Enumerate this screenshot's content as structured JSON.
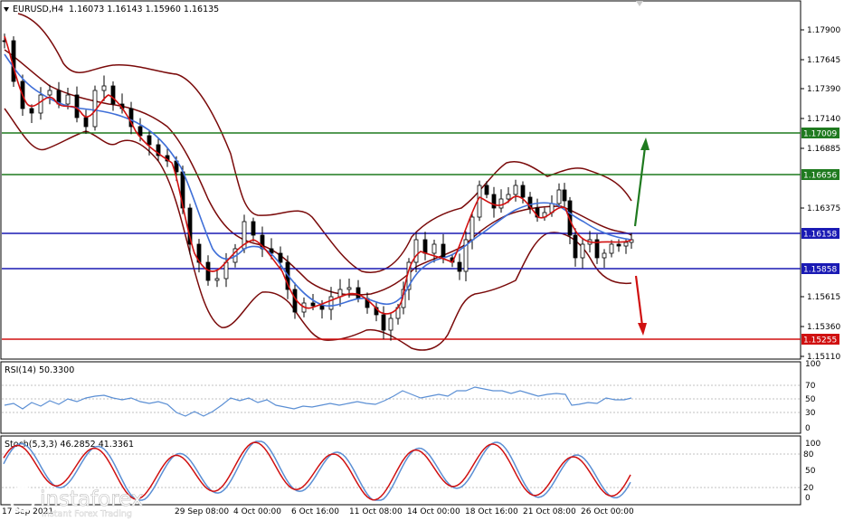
{
  "header": {
    "symbol": "EURUSD,H4",
    "ohlc": "1.16073 1.16143 1.15960 1.16135"
  },
  "price_axis": [
    "1.17900",
    "1.17645",
    "1.17390",
    "1.17140",
    "1.16885",
    "1.16375",
    "1.15615",
    "1.15360",
    "1.15110"
  ],
  "price_levels": [
    {
      "value": 1.17009,
      "label": "1.17009",
      "color": "#1f7a1f"
    },
    {
      "value": 1.16656,
      "label": "1.16656",
      "color": "#1f7a1f"
    },
    {
      "value": 1.16158,
      "label": "1.16158",
      "color": "#1a1ab4"
    },
    {
      "value": 1.15858,
      "label": "1.15858",
      "color": "#1a1ab4"
    },
    {
      "value": 1.15255,
      "label": "1.15255",
      "color": "#d01010"
    }
  ],
  "rsi": {
    "label": "RSI(14) 50.3300",
    "scale": [
      "70",
      "50",
      "30",
      "0"
    ],
    "tick_max": "100"
  },
  "stoch": {
    "label": "Stoch(5,3,3) 46.2852 41.3361",
    "scale": [
      "100",
      "50",
      "0"
    ],
    "levels": [
      "80",
      "20"
    ]
  },
  "time_axis": [
    "17 Sep 2021",
    "29 Sep 08:00",
    "4 Oct 00:00",
    "6 Oct 16:00",
    "11 Oct 08:00",
    "14 Oct 00:00",
    "18 Oct 16:00",
    "21 Oct 08:00",
    "26 Oct 00:00"
  ],
  "watermark": {
    "brand": "instaforex",
    "tagline": "Instant Forex Trading"
  },
  "colors": {
    "bull_arrow": "#1f7a1f",
    "bear_arrow": "#d01010",
    "bands": "#7a0a0a",
    "ma_fast": "#d01010",
    "ma_slow": "#3f6fd8",
    "candles": "#000000"
  }
}
